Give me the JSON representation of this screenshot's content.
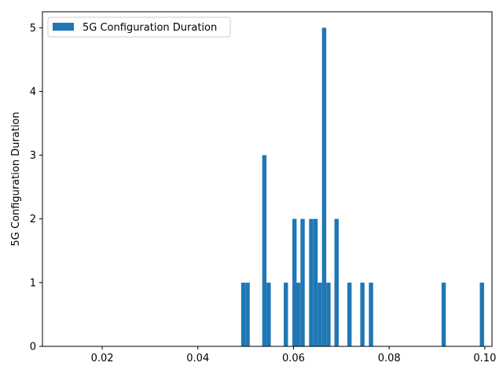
{
  "chart_data": {
    "type": "bar",
    "title": "",
    "xlabel": "",
    "ylabel": "5G Configuration Duration",
    "xlim": [
      0.0075,
      0.1015
    ],
    "ylim": [
      0,
      5.25
    ],
    "xticks": [
      "0.02",
      "0.04",
      "0.06",
      "0.08",
      "0.10"
    ],
    "xtick_values": [
      0.02,
      0.04,
      0.06,
      0.08,
      0.1
    ],
    "yticks": [
      "0",
      "1",
      "2",
      "3",
      "4",
      "5"
    ],
    "ytick_values": [
      0,
      1,
      2,
      3,
      4,
      5
    ],
    "bin_width": 0.00089,
    "grid": false,
    "legend_position": "top-left",
    "series": [
      {
        "name": "5G Configuration Duration",
        "color": "#1f77b4",
        "bins": [
          {
            "x": 0.0495,
            "count": 1
          },
          {
            "x": 0.0504,
            "count": 1
          },
          {
            "x": 0.0539,
            "count": 3
          },
          {
            "x": 0.0548,
            "count": 1
          },
          {
            "x": 0.0584,
            "count": 1
          },
          {
            "x": 0.0602,
            "count": 2
          },
          {
            "x": 0.061,
            "count": 1
          },
          {
            "x": 0.0619,
            "count": 2
          },
          {
            "x": 0.0637,
            "count": 2
          },
          {
            "x": 0.0646,
            "count": 2
          },
          {
            "x": 0.0655,
            "count": 1
          },
          {
            "x": 0.0664,
            "count": 5
          },
          {
            "x": 0.0673,
            "count": 1
          },
          {
            "x": 0.069,
            "count": 2
          },
          {
            "x": 0.0717,
            "count": 1
          },
          {
            "x": 0.0744,
            "count": 1
          },
          {
            "x": 0.0762,
            "count": 1
          },
          {
            "x": 0.0914,
            "count": 1
          },
          {
            "x": 0.0994,
            "count": 1
          }
        ]
      }
    ]
  }
}
